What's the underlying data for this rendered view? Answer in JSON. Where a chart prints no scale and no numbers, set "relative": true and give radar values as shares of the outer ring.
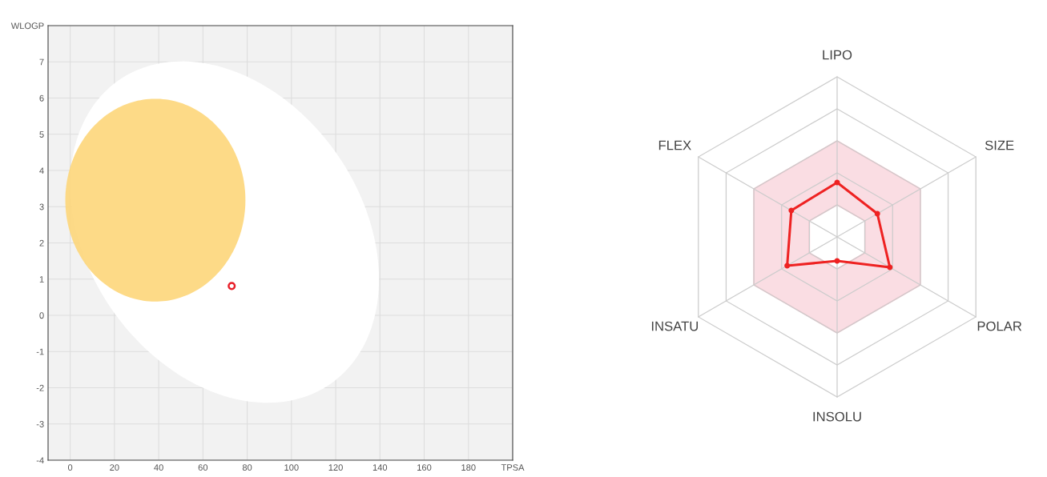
{
  "chart_data": [
    {
      "type": "scatter",
      "x": [
        73
      ],
      "values": [
        0.81
      ],
      "color": "#e8202a",
      "marker": "circle",
      "grid": true,
      "xlim": [
        -10,
        200
      ],
      "xticks": [
        0,
        20,
        40,
        60,
        80,
        100,
        120,
        140,
        160,
        180,
        {
          "value": 200,
          "label": "TPSA"
        }
      ],
      "ylim": [
        -4,
        8
      ],
      "yticks": [
        -4,
        -3,
        -2,
        -1,
        0,
        1,
        2,
        3,
        4,
        5,
        6,
        7,
        {
          "value": 8,
          "label": "WLOGP"
        }
      ]
    },
    {
      "type": "radar",
      "relative": true,
      "categories": [
        "LIPO",
        "SIZE",
        "POLAR",
        "INSOLU",
        "INSATU",
        "FLEX"
      ],
      "series": [
        {
          "color": "#ee2222",
          "values": [
            0.34,
            0.29,
            0.38,
            0.15,
            0.36,
            0.33
          ]
        }
      ],
      "grid": true,
      "marker": "circle",
      "line_style": "solid"
    }
  ]
}
